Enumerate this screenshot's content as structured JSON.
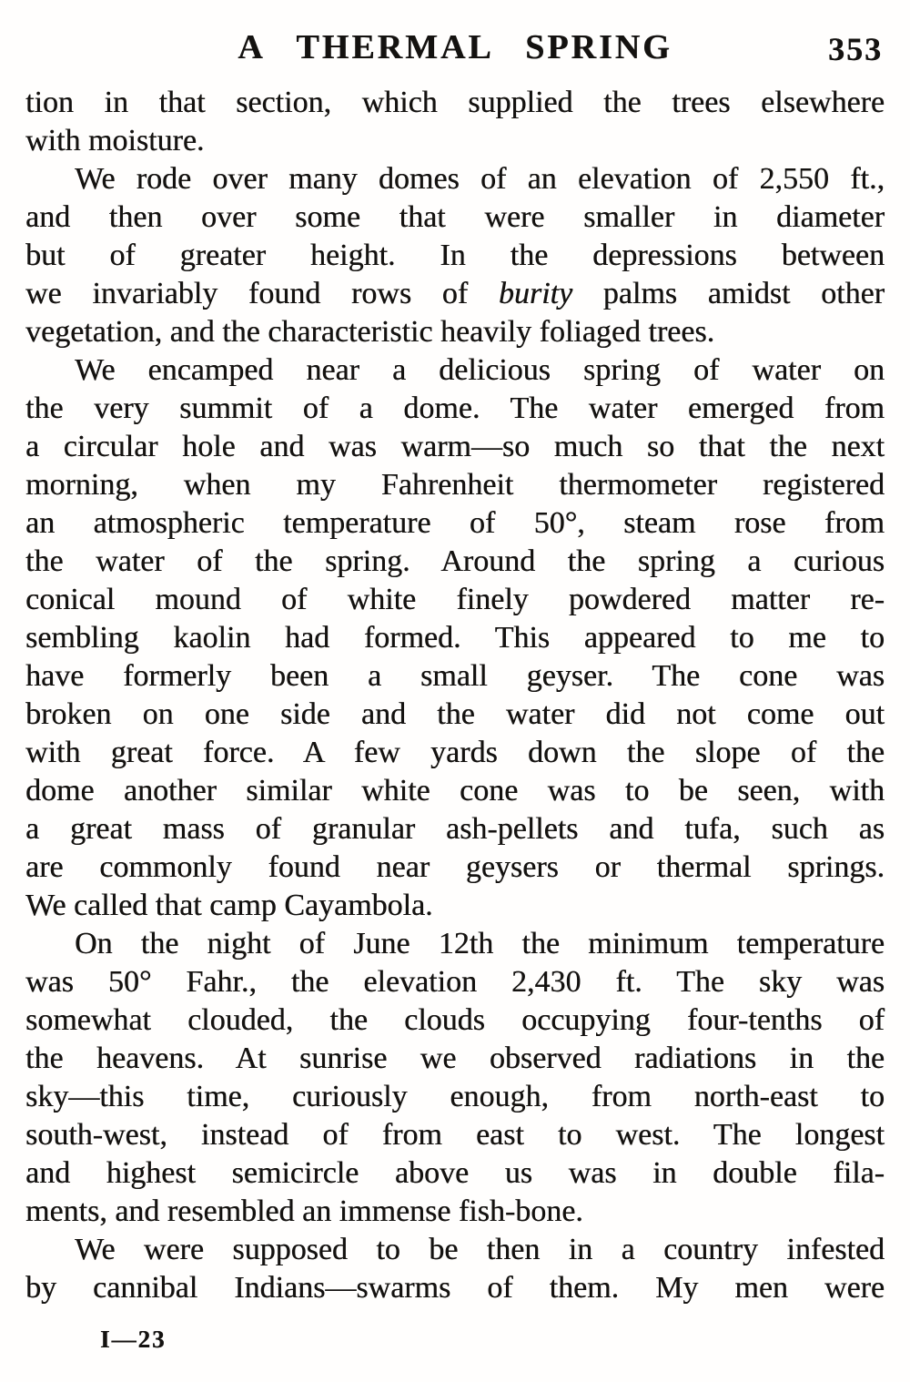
{
  "header": {
    "title": "A THERMAL SPRING",
    "page_number": "353"
  },
  "body": {
    "paragraphs": [
      {
        "indent": false,
        "justify_last": false,
        "lines": [
          "tion in that section, which supplied the trees elsewhere",
          "with moisture."
        ]
      },
      {
        "indent": true,
        "justify_last": false,
        "lines": [
          "We rode over many domes of an elevation of 2,550 ft.,",
          "and then over some that were smaller in diameter",
          "but of greater height.  In the depressions between",
          [
            {
              "text": "we invariably found rows of "
            },
            {
              "text": "burity",
              "italic": true
            },
            {
              "text": " palms amidst other"
            }
          ],
          "vegetation, and the characteristic heavily foliaged trees."
        ]
      },
      {
        "indent": true,
        "justify_last": false,
        "lines": [
          "We encamped near a delicious spring of water on",
          "the very summit of a dome.  The water emerged from",
          "a circular hole and was warm—so much so that the next",
          "morning, when my Fahrenheit thermometer registered",
          "an atmospheric temperature of 50°, steam rose from",
          "the water of the spring.  Around the spring a curious",
          "conical mound of white finely powdered matter re-",
          "sembling kaolin had formed.  This appeared to me to",
          "have formerly been a small geyser.  The cone was",
          "broken on one side and the water did not come out",
          "with great force.  A few yards down the slope of the",
          "dome another similar white cone was to be seen, with",
          "a great mass of granular ash-pellets and tufa, such as",
          "are commonly found near geysers or thermal springs.",
          "We called that camp Cayambola."
        ]
      },
      {
        "indent": true,
        "justify_last": false,
        "lines": [
          "On the night of June 12th the minimum temperature",
          "was 50° Fahr., the elevation 2,430 ft.  The sky was",
          "somewhat clouded, the clouds occupying four-tenths of",
          "the heavens.  At sunrise we observed radiations in the",
          "sky—this time, curiously enough, from north-east to",
          "south-west, instead of from east to west.  The longest",
          "and highest semicircle above us was in double fila-",
          "ments, and resembled an immense fish-bone."
        ]
      },
      {
        "indent": true,
        "justify_last": true,
        "lines": [
          "We were supposed to be then in a country infested",
          "by cannibal Indians—swarms of them.  My men were"
        ]
      }
    ]
  },
  "footer": {
    "signature": "I—23"
  }
}
